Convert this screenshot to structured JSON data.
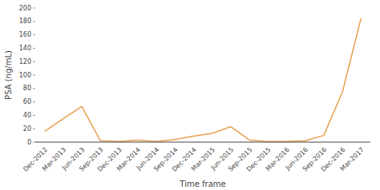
{
  "chart_data": {
    "type": "line",
    "xlabel": "Time frame",
    "ylabel": "PSA (ng/mL)",
    "categories": [
      "Dec-2012",
      "Mar-2013",
      "Jun-2013",
      "Sep-2013",
      "Dec-2013",
      "Mar-2014",
      "Jun-2014",
      "Sep-2014",
      "Dec-2014",
      "Mar-2015",
      "Jun-2015",
      "Sep-2015",
      "Dec-2015",
      "Mar-2016",
      "Jun-2016",
      "Sep-2016",
      "Dec-2016",
      "Mar-2017"
    ],
    "values": [
      16,
      35,
      53,
      2,
      1,
      3,
      1,
      4,
      9,
      13,
      23,
      3,
      1,
      1,
      2,
      10,
      75,
      185
    ],
    "color": "#E8A050",
    "ylim": [
      0,
      200
    ],
    "yticks": [
      0,
      20,
      40,
      60,
      80,
      100,
      120,
      140,
      160,
      180,
      200
    ],
    "grid": false
  }
}
